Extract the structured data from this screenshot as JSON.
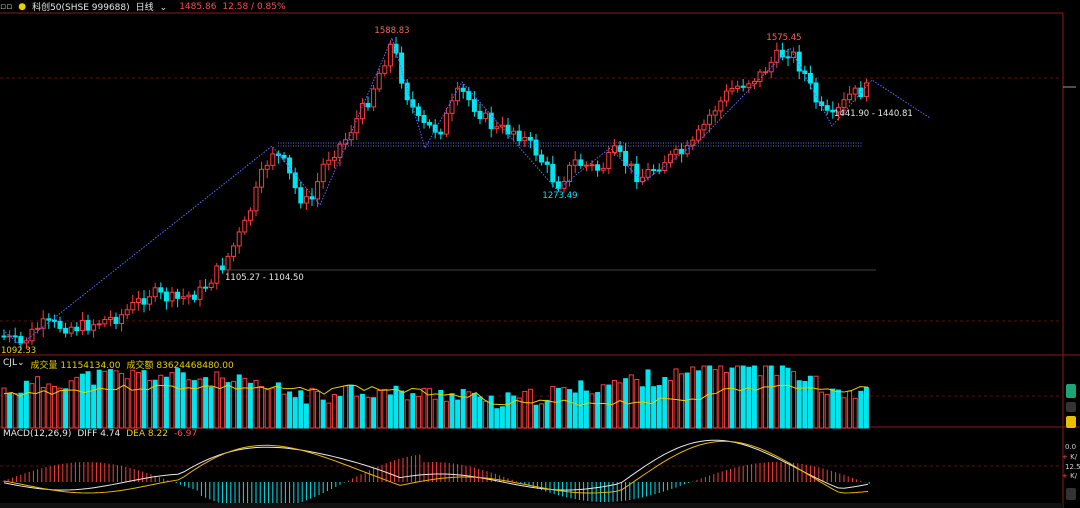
{
  "header": {
    "menu_icon": "menu-dots-icon",
    "title": "科创50(SHSE 999688)",
    "period": "日线",
    "price": "1485.86",
    "change": "12.58 / 0.85%"
  },
  "price_panel": {
    "annotations": {
      "high_1": "1588.83",
      "high_2": "1575.45",
      "low_1": "1273.49",
      "low_start": "1092.33",
      "range_1": "1105.27 - 1104.50",
      "range_2": "1441.90 - 1440.81"
    }
  },
  "volume_panel": {
    "name": "CJL",
    "volume_label": "成交量",
    "volume_value": "11154134.00",
    "amount_label": "成交额",
    "amount_value": "83624468480.00"
  },
  "macd_panel": {
    "name": "MACD(12,26,9)",
    "diff_label": "DIFF",
    "diff_value": "4.74",
    "dea_label": "DEA",
    "dea_value": "8.22",
    "macd_value": "-6.97"
  },
  "right_side": {
    "value_1": "0.0",
    "label_1": "K/",
    "value_2": "12.5",
    "label_2": "K/"
  },
  "colors": {
    "up": "#ff3b3b",
    "down": "#00e5ee",
    "zigzag": "#5c6cff",
    "diff_line": "#e8e8e8",
    "dea_line": "#e8b800",
    "volume_avg": "#e8d000"
  }
}
